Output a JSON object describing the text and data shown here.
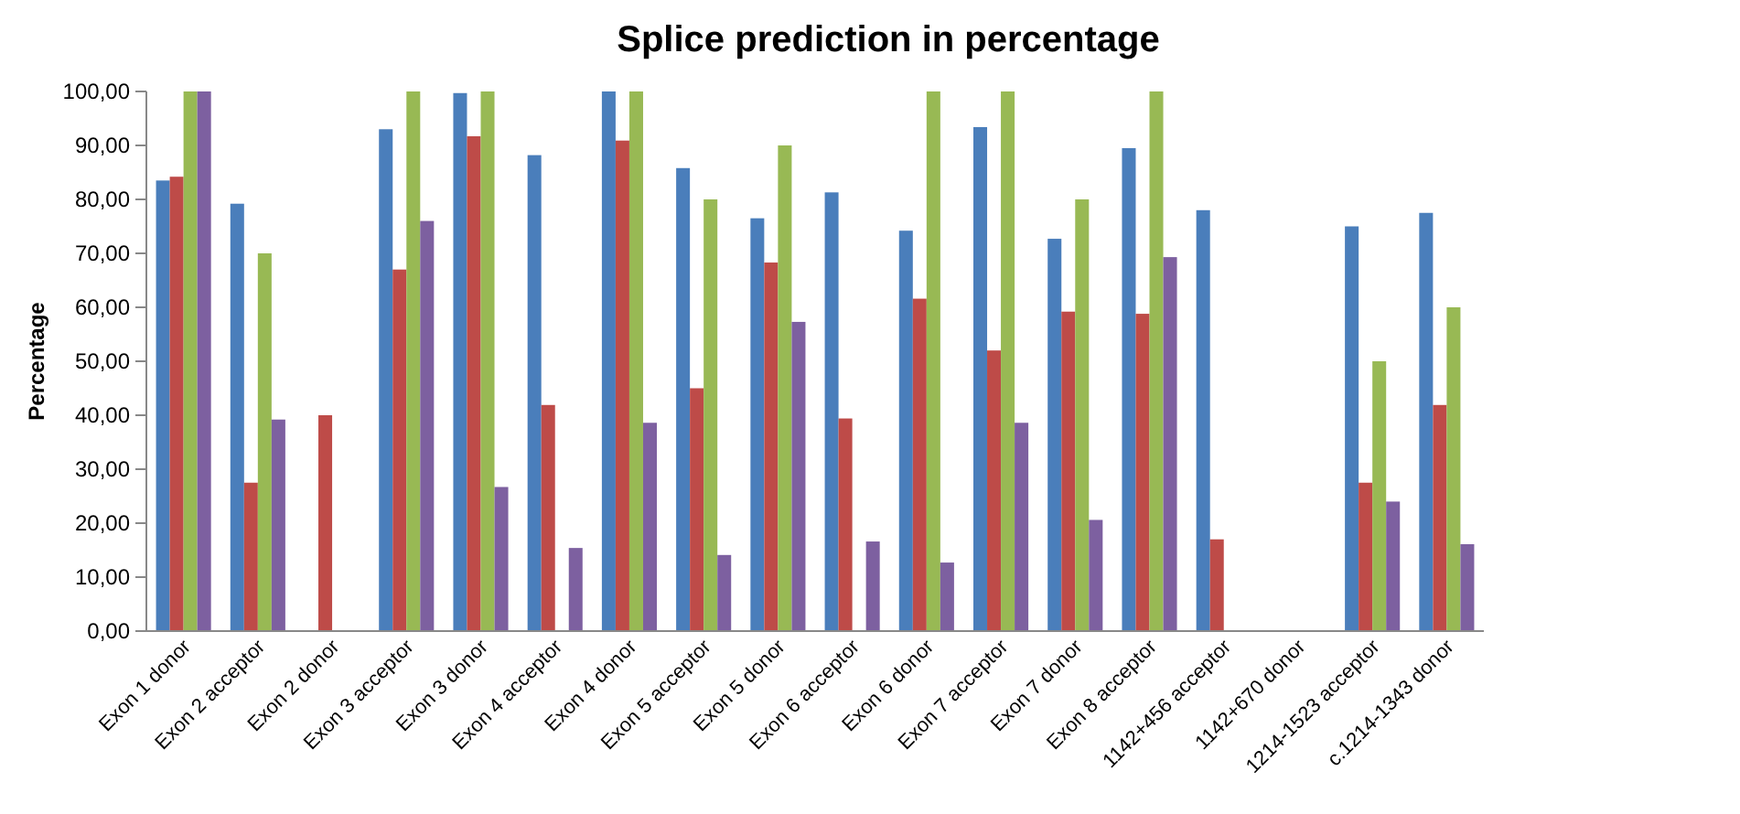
{
  "chart_data": {
    "type": "bar",
    "title": "Splice prediction in percentage",
    "ylabel": "Percentage",
    "categories": [
      "Exon 1 donor",
      "Exon 2 acceptor",
      "Exon 2 donor",
      "Exon 3 acceptor",
      "Exon 3 donor",
      "Exon 4 acceptor",
      "Exon 4 donor",
      "Exon 5 acceptor",
      "Exon 5 donor",
      "Exon 6 acceptor",
      "Exon 6 donor",
      "Exon 7 acceptor",
      "Exon 7 donor",
      "Exon 8 acceptor",
      "1142+456 acceptor",
      "1142+670 donor",
      "1214-1523 acceptor",
      "c.1214-1343 donor"
    ],
    "series": [
      {
        "color": "#4a7ebb",
        "values": [
          83.5,
          79.2,
          null,
          93,
          99.7,
          88.2,
          100,
          85.8,
          76.5,
          81.3,
          74.2,
          93.4,
          72.7,
          89.5,
          78,
          null,
          75,
          77.5
        ]
      },
      {
        "color": "#be4b48",
        "values": [
          84.2,
          27.5,
          40,
          67,
          91.7,
          41.9,
          90.9,
          45,
          68.3,
          39.4,
          61.6,
          52,
          59.2,
          58.8,
          17,
          null,
          27.5,
          41.9
        ]
      },
      {
        "color": "#98b954",
        "values": [
          100,
          70,
          null,
          100,
          100,
          null,
          100,
          80,
          90,
          null,
          100,
          100,
          80,
          100,
          null,
          null,
          50,
          60
        ]
      },
      {
        "color": "#7d60a0",
        "values": [
          100,
          39.2,
          null,
          76,
          26.7,
          15.4,
          38.6,
          14.1,
          57.3,
          16.6,
          12.7,
          38.6,
          20.6,
          69.3,
          null,
          null,
          24,
          16.1
        ]
      }
    ],
    "ylim": [
      0,
      100
    ],
    "yticks": [
      {
        "value": 0,
        "label": "0,00"
      },
      {
        "value": 10,
        "label": "10,00"
      },
      {
        "value": 20,
        "label": "20,00"
      },
      {
        "value": 30,
        "label": "30,00"
      },
      {
        "value": 40,
        "label": "40,00"
      },
      {
        "value": 50,
        "label": "50,00"
      },
      {
        "value": 60,
        "label": "60,00"
      },
      {
        "value": 70,
        "label": "70,00"
      },
      {
        "value": 80,
        "label": "80,00"
      },
      {
        "value": 90,
        "label": "90,00"
      },
      {
        "value": 100,
        "label": "100,00"
      }
    ],
    "grid": false
  }
}
